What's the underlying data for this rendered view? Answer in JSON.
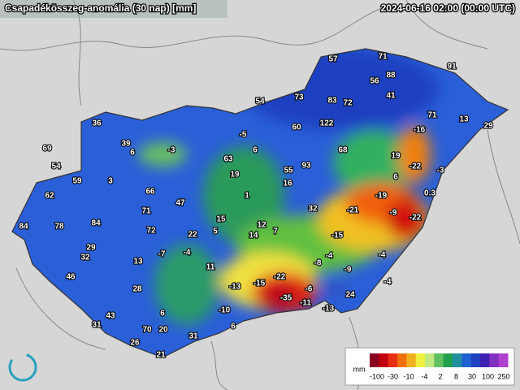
{
  "header": {
    "title": "Csapadékösszeg-anomália (30 nap) [mm]",
    "timestamp": "2024-06-16 02:00 (00:00 UTC)"
  },
  "stations": [
    57,
    71,
    91,
    56,
    88,
    54,
    73,
    83,
    72,
    41,
    71,
    13,
    29,
    36,
    60,
    122,
    -16,
    -5,
    39,
    -3,
    6,
    6,
    68,
    19,
    69,
    63,
    93,
    54,
    19,
    55,
    -22,
    -3,
    59,
    3,
    16,
    6,
    1,
    66,
    0.3,
    62,
    -19,
    47,
    32,
    -21,
    -9,
    71,
    15,
    12,
    -22,
    84,
    78,
    84,
    72,
    5,
    7,
    14,
    22,
    -15,
    29,
    -7,
    -4,
    32,
    -4,
    -4,
    13,
    -8,
    11,
    -9,
    -22,
    46,
    -13,
    -15,
    -4,
    28,
    -6,
    24,
    -35,
    -11,
    6,
    -10,
    -13,
    43,
    31,
    70,
    20,
    6,
    31,
    26,
    21
  ],
  "legend": {
    "unit": "mm",
    "labels": [
      -100,
      -30,
      -10,
      -4,
      2,
      8,
      30,
      100,
      250
    ]
  }
}
